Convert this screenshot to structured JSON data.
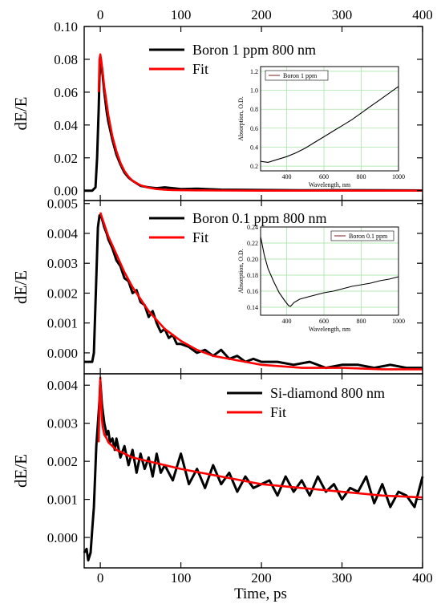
{
  "chart_data": {
    "type": "line",
    "xlabel": "Time, ps",
    "xlim": [
      -20,
      400
    ],
    "xticks": [
      0,
      100,
      200,
      300,
      400
    ],
    "top_xticks": [
      "0",
      "100",
      "200",
      "300",
      "400"
    ],
    "bottom_xticks": [
      "0",
      "100",
      "200",
      "300",
      "400"
    ],
    "panels": [
      {
        "ylabel": "dE/E",
        "ylim": [
          -0.006,
          0.1
        ],
        "yticks": [
          0.0,
          0.02,
          0.04,
          0.06,
          0.08,
          0.1
        ],
        "ytick_labels": [
          "0.00",
          "0.02",
          "0.04",
          "0.06",
          "0.08",
          "0.10"
        ],
        "legend": [
          "Boron 1 ppm 800 nm",
          "Fit"
        ],
        "series": [
          {
            "name": "Boron 1 ppm 800 nm",
            "color": "#000000",
            "x": [
              -20,
              -10,
              -6,
              -4,
              -2,
              -1,
              0,
              1,
              2,
              3,
              5,
              8,
              10,
              15,
              20,
              25,
              30,
              35,
              40,
              50,
              60,
              70,
              80,
              90,
              100,
              120,
              150,
              200,
              250,
              300,
              350,
              400
            ],
            "y": [
              0.0,
              0.0,
              0.002,
              0.02,
              0.05,
              0.07,
              0.076,
              0.077,
              0.075,
              0.07,
              0.06,
              0.048,
              0.042,
              0.031,
              0.022,
              0.016,
              0.011,
              0.008,
              0.006,
              0.003,
              0.002,
              0.0015,
              0.002,
              0.0015,
              0.001,
              0.0012,
              0.0006,
              0.0004,
              0.0002,
              0.0003,
              0.0002,
              0.0001
            ]
          },
          {
            "name": "Fit",
            "color": "#ff0000",
            "x": [
              -2,
              -1,
              0,
              1,
              2,
              3,
              5,
              8,
              10,
              15,
              20,
              25,
              30,
              35,
              40,
              50,
              60,
              70,
              80,
              90,
              100,
              120,
              150,
              200,
              250,
              300,
              350,
              400
            ],
            "y": [
              0.06,
              0.08,
              0.083,
              0.08,
              0.076,
              0.072,
              0.063,
              0.053,
              0.046,
              0.033,
              0.024,
              0.017,
              0.012,
              0.0085,
              0.006,
              0.0033,
              0.0018,
              0.001,
              0.0006,
              0.0004,
              0.0003,
              0.0002,
              0.0001,
              0.0,
              0.0,
              0.0,
              0.0,
              0.0
            ]
          }
        ],
        "inset": {
          "xlabel": "Wavelength, nm",
          "ylabel": "Absorption, O.D.",
          "xlim": [
            260,
            1000
          ],
          "ylim": [
            0.15,
            1.25
          ],
          "xticks": [
            400,
            600,
            800,
            1000
          ],
          "yticks": [
            0.2,
            0.4,
            0.6,
            0.8,
            1.0,
            1.2
          ],
          "ytick_labels": [
            "0.2",
            "0.4",
            "0.6",
            "0.8",
            "1.0",
            "1.2"
          ],
          "legend": "Boron 1 ppm",
          "legend_position": "top-left",
          "x": [
            260,
            300,
            350,
            400,
            450,
            500,
            550,
            600,
            650,
            700,
            750,
            800,
            850,
            900,
            950,
            1000
          ],
          "y": [
            0.25,
            0.24,
            0.27,
            0.3,
            0.34,
            0.39,
            0.45,
            0.51,
            0.57,
            0.63,
            0.69,
            0.76,
            0.83,
            0.9,
            0.97,
            1.04
          ]
        }
      },
      {
        "ylabel": "dE/E",
        "ylim": [
          -0.0007,
          0.0051
        ],
        "yticks": [
          0.0,
          0.001,
          0.002,
          0.003,
          0.004,
          0.005
        ],
        "ytick_labels": [
          "0.000",
          "0.001",
          "0.002",
          "0.003",
          "0.004",
          "0.005"
        ],
        "legend": [
          "Boron 0.1 ppm 800 nm",
          "Fit"
        ],
        "series": [
          {
            "name": "Boron 0.1 ppm 800 nm",
            "color": "#000000",
            "x": [
              -20,
              -10,
              -8,
              -5,
              -3,
              -1,
              0,
              2,
              5,
              8,
              10,
              15,
              20,
              25,
              30,
              35,
              40,
              45,
              50,
              55,
              60,
              65,
              70,
              75,
              80,
              85,
              90,
              95,
              100,
              110,
              120,
              130,
              140,
              150,
              160,
              170,
              180,
              190,
              200,
              220,
              240,
              260,
              280,
              300,
              320,
              340,
              360,
              380,
              400
            ],
            "y": [
              -0.0003,
              -0.0003,
              0.0,
              0.0025,
              0.0042,
              0.0046,
              0.0046,
              0.0045,
              0.0042,
              0.004,
              0.0038,
              0.0035,
              0.0031,
              0.0029,
              0.0025,
              0.0024,
              0.002,
              0.0021,
              0.0017,
              0.0016,
              0.0012,
              0.0014,
              0.001,
              0.0007,
              0.0008,
              0.0005,
              0.0006,
              0.0003,
              0.0003,
              0.0002,
              0.0,
              0.0001,
              -0.0001,
              0.0001,
              -0.0002,
              -0.0001,
              -0.0003,
              -0.0002,
              -0.0003,
              -0.0003,
              -0.0004,
              -0.0003,
              -0.0005,
              -0.0004,
              -0.0004,
              -0.0005,
              -0.0004,
              -0.0005,
              -0.0005
            ]
          },
          {
            "name": "Fit",
            "color": "#ff0000",
            "x": [
              0,
              5,
              10,
              20,
              30,
              40,
              50,
              60,
              70,
              80,
              90,
              100,
              120,
              140,
              160,
              180,
              200,
              250,
              300,
              350,
              400
            ],
            "y": [
              0.0047,
              0.0043,
              0.0039,
              0.0033,
              0.0027,
              0.0022,
              0.0018,
              0.0014,
              0.0011,
              0.0008,
              0.0006,
              0.0004,
              0.0001,
              -0.0001,
              -0.0002,
              -0.0003,
              -0.0004,
              -0.0005,
              -0.0005,
              -0.00055,
              -0.00055
            ]
          }
        ],
        "inset": {
          "xlabel": "Wavelength, nm",
          "ylabel": "Absorption, O.D.",
          "xlim": [
            260,
            1000
          ],
          "ylim": [
            0.13,
            0.24
          ],
          "xticks": [
            400,
            600,
            800,
            1000
          ],
          "yticks": [
            0.14,
            0.16,
            0.18,
            0.2,
            0.22,
            0.24
          ],
          "ytick_labels": [
            "0.14",
            "0.16",
            "0.18",
            "0.20",
            "0.22",
            "0.24"
          ],
          "legend": "Boron 0.1 ppm",
          "legend_position": "top-right",
          "x": [
            260,
            280,
            300,
            330,
            360,
            390,
            410,
            420,
            440,
            470,
            500,
            550,
            600,
            650,
            700,
            750,
            800,
            850,
            900,
            950,
            1000
          ],
          "y": [
            0.228,
            0.205,
            0.188,
            0.172,
            0.158,
            0.148,
            0.142,
            0.141,
            0.146,
            0.15,
            0.152,
            0.155,
            0.158,
            0.16,
            0.163,
            0.166,
            0.168,
            0.17,
            0.173,
            0.175,
            0.178
          ]
        }
      },
      {
        "ylabel": "dE/E",
        "ylim": [
          -0.0008,
          0.0043
        ],
        "yticks": [
          0.0,
          0.001,
          0.002,
          0.003,
          0.004
        ],
        "ytick_labels": [
          "0.000",
          "0.001",
          "0.002",
          "0.003",
          "0.004"
        ],
        "legend": [
          "Si-diamond 800 nm",
          "Fit"
        ],
        "series": [
          {
            "name": "Si-diamond 800 nm",
            "color": "#000000",
            "x": [
              -20,
              -17,
              -15,
              -12,
              -10,
              -8,
              -5,
              -3,
              -1,
              0,
              2,
              5,
              8,
              10,
              12,
              15,
              18,
              20,
              25,
              30,
              35,
              40,
              45,
              50,
              55,
              60,
              65,
              70,
              75,
              80,
              90,
              100,
              110,
              120,
              130,
              140,
              150,
              160,
              170,
              180,
              190,
              200,
              210,
              220,
              230,
              240,
              250,
              260,
              270,
              280,
              290,
              300,
              310,
              320,
              330,
              340,
              350,
              360,
              370,
              380,
              390,
              400
            ],
            "y": [
              -0.0004,
              -0.0003,
              -0.0006,
              -0.0004,
              0.0002,
              0.0008,
              0.0024,
              0.003,
              0.0036,
              0.0041,
              0.0035,
              0.003,
              0.0027,
              0.0028,
              0.0025,
              0.0026,
              0.0023,
              0.0026,
              0.0021,
              0.0024,
              0.0019,
              0.0023,
              0.0017,
              0.0022,
              0.0018,
              0.0021,
              0.0016,
              0.0022,
              0.0017,
              0.0019,
              0.0015,
              0.0022,
              0.0014,
              0.0018,
              0.0013,
              0.0019,
              0.0014,
              0.0017,
              0.0012,
              0.0016,
              0.0013,
              0.0014,
              0.0015,
              0.0011,
              0.0016,
              0.0012,
              0.0015,
              0.0011,
              0.0016,
              0.0012,
              0.0014,
              0.001,
              0.0013,
              0.0012,
              0.0016,
              0.0009,
              0.0014,
              0.0008,
              0.0012,
              0.0011,
              0.0008,
              0.0016
            ]
          },
          {
            "name": "Fit",
            "color": "#ff0000",
            "x": [
              -2,
              -1,
              0,
              1,
              2,
              3,
              5,
              8,
              10,
              15,
              20,
              30,
              40,
              60,
              80,
              100,
              150,
              200,
              250,
              300,
              350,
              400
            ],
            "y": [
              0.0025,
              0.0036,
              0.0042,
              0.0036,
              0.0031,
              0.0029,
              0.0027,
              0.0026,
              0.0025,
              0.0024,
              0.0023,
              0.0022,
              0.0021,
              0.002,
              0.0019,
              0.0018,
              0.0016,
              0.0014,
              0.0013,
              0.0012,
              0.0011,
              0.00105
            ]
          }
        ]
      }
    ]
  }
}
